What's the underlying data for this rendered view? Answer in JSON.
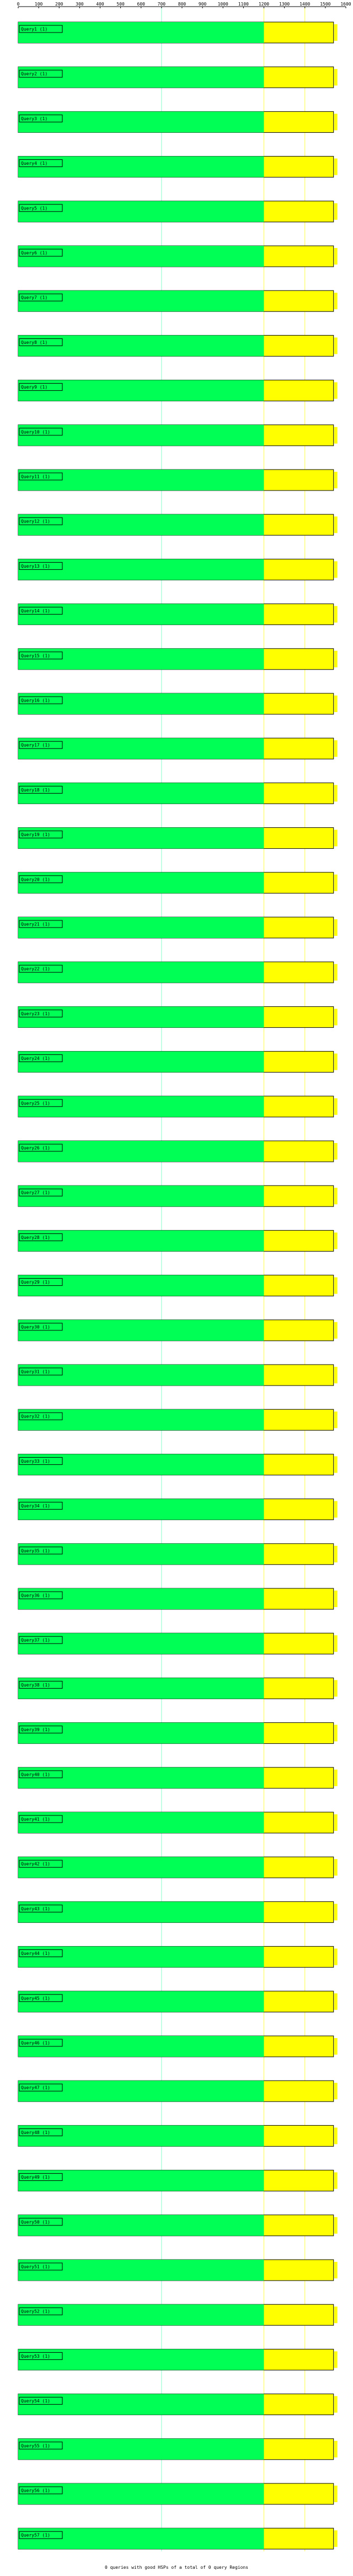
{
  "colors": {
    "aligned": "#00ff55",
    "unaligned": "#ffff00",
    "guide_green": "#88ffcc",
    "guide_yellow": "#ffff44",
    "outline": "#000000"
  },
  "footer_text": "0 queries with good HSPs of a total of 0 query Regions",
  "chart_data": {
    "type": "bar",
    "xlim": [
      0,
      1600
    ],
    "xticks": [
      0,
      100,
      200,
      300,
      400,
      500,
      600,
      700,
      800,
      900,
      1000,
      1100,
      1200,
      1300,
      1400,
      1500,
      1600
    ],
    "grid": false,
    "categories": [
      "Query1 (1)",
      "Query2 (1)",
      "Query3 (1)",
      "Query4 (1)",
      "Query5 (1)",
      "Query6 (1)",
      "Query7 (1)",
      "Query8 (1)",
      "Query9 (1)",
      "Query10 (1)",
      "Query11 (1)",
      "Query12 (1)",
      "Query13 (1)",
      "Query14 (1)",
      "Query15 (1)",
      "Query16 (1)",
      "Query17 (1)",
      "Query18 (1)",
      "Query19 (1)",
      "Query20 (1)",
      "Query21 (1)",
      "Query22 (1)",
      "Query23 (1)",
      "Query24 (1)",
      "Query25 (1)",
      "Query26 (1)",
      "Query27 (1)",
      "Query28 (1)",
      "Query29 (1)",
      "Query30 (1)",
      "Query31 (1)",
      "Query32 (1)",
      "Query33 (1)",
      "Query34 (1)",
      "Query35 (1)",
      "Query36 (1)",
      "Query37 (1)",
      "Query38 (1)",
      "Query39 (1)",
      "Query40 (1)",
      "Query41 (1)",
      "Query42 (1)",
      "Query43 (1)",
      "Query44 (1)",
      "Query45 (1)",
      "Query46 (1)",
      "Query47 (1)",
      "Query48 (1)",
      "Query49 (1)",
      "Query50 (1)",
      "Query51 (1)",
      "Query52 (1)",
      "Query53 (1)",
      "Query54 (1)",
      "Query55 (1)",
      "Query56 (1)",
      "Query57 (1)"
    ],
    "series": [
      {
        "name": "",
        "values": [
          1200,
          1200,
          1200,
          1200,
          1200,
          1200,
          1200,
          1200,
          1200,
          1200,
          1200,
          1200,
          1200,
          1200,
          1200,
          1200,
          1200,
          1200,
          1200,
          1200,
          1200,
          1200,
          1200,
          1200,
          1200,
          1200,
          1200,
          1200,
          1200,
          1200,
          1200,
          1200,
          1200,
          1200,
          1200,
          1200,
          1200,
          1200,
          1200,
          1200,
          1200,
          1200,
          1200,
          1200,
          1200,
          1200,
          1200,
          1200,
          1200,
          1200,
          1200,
          1200,
          1200,
          1200,
          1200,
          1200,
          1200
        ]
      },
      {
        "name": "",
        "values": [
          1540,
          1540,
          1540,
          1540,
          1540,
          1540,
          1540,
          1540,
          1540,
          1540,
          1540,
          1540,
          1540,
          1540,
          1540,
          1540,
          1540,
          1540,
          1540,
          1540,
          1540,
          1540,
          1540,
          1540,
          1540,
          1540,
          1540,
          1540,
          1540,
          1540,
          1540,
          1540,
          1540,
          1540,
          1540,
          1540,
          1540,
          1540,
          1540,
          1540,
          1540,
          1540,
          1540,
          1540,
          1540,
          1540,
          1540,
          1540,
          1540,
          1540,
          1540,
          1540,
          1540,
          1540,
          1540,
          1540,
          1540
        ]
      }
    ],
    "guides": [
      700,
      1200,
      1400
    ]
  }
}
